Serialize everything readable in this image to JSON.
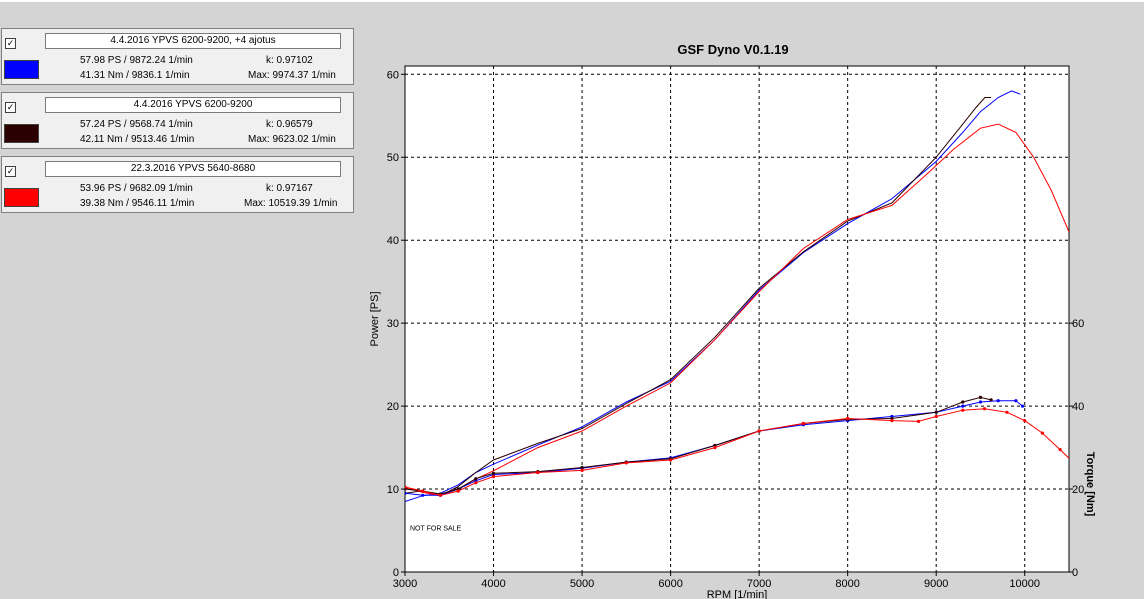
{
  "runs": [
    {
      "checked": "✓",
      "name": "4.4.2016 YPVS 6200-9200, +4 ajotus",
      "color": "#0000ff",
      "power": "57.98 PS / 9872.24 1/min",
      "k": "k: 0.97102",
      "torque": "41.31 Nm / 9836.1 1/min",
      "max": "Max: 9974.37 1/min"
    },
    {
      "checked": "✓",
      "name": "4.4.2016 YPVS 6200-9200",
      "color": "#2a0000",
      "power": "57.24 PS / 9568.74 1/min",
      "k": "k: 0.96579",
      "torque": "42.11 Nm / 9513.46 1/min",
      "max": "Max: 9623.02 1/min"
    },
    {
      "checked": "✓",
      "name": "22.3.2016 YPVS 5640-8680",
      "color": "#ff0000",
      "power": "53.96 PS / 9682.09 1/min",
      "k": "k: 0.97167",
      "torque": "39.38 Nm / 9546.11 1/min",
      "max": "Max: 10519.39 1/min"
    }
  ],
  "chart_data": {
    "type": "line",
    "title": "GSF Dyno V0.1.19",
    "xlabel": "RPM [1/min]",
    "ylabel": "Power [PS]",
    "y2label": "Torque [Nm]",
    "annotation": "NOT FOR SALE",
    "xlim": [
      3000,
      10500
    ],
    "ylim": [
      0,
      61
    ],
    "y2lim": [
      0,
      122
    ],
    "x_ticks": [
      3000,
      4000,
      5000,
      6000,
      7000,
      8000,
      9000,
      10000
    ],
    "y_ticks": [
      0,
      10,
      20,
      30,
      40,
      50,
      60
    ],
    "y2_ticks": [
      0,
      20,
      40,
      60
    ],
    "grid": true,
    "series": [
      {
        "name": "4.4.2016 YPVS 6200-9200, +4 ajotus",
        "quantity": "power",
        "color": "#0000ff",
        "x": [
          3000,
          3200,
          3400,
          3600,
          3800,
          4000,
          4500,
          5000,
          5500,
          6000,
          6500,
          7000,
          7500,
          8000,
          8500,
          9000,
          9300,
          9500,
          9700,
          9850,
          9950
        ],
        "y": [
          8.5,
          9.2,
          9.5,
          10.5,
          12,
          13,
          15.3,
          17.5,
          20.5,
          23,
          28,
          34,
          38.5,
          42,
          45,
          49.5,
          53,
          55.5,
          57.2,
          58,
          57.6
        ]
      },
      {
        "name": "4.4.2016 YPVS 6200-9200",
        "quantity": "power",
        "color": "#2a0000",
        "x": [
          3000,
          3200,
          3400,
          3600,
          3800,
          4000,
          4500,
          5000,
          5500,
          6000,
          6500,
          7000,
          7500,
          8000,
          8500,
          9000,
          9300,
          9450,
          9550,
          9620
        ],
        "y": [
          9.5,
          9.8,
          9.2,
          10.3,
          12,
          13.5,
          15.5,
          17.3,
          20.3,
          23.2,
          28.3,
          34.2,
          38.6,
          42.3,
          44.5,
          50,
          54,
          56,
          57.2,
          57.2
        ]
      },
      {
        "name": "22.3.2016 YPVS 5640-8680",
        "quantity": "power",
        "color": "#ff0000",
        "x": [
          3000,
          3200,
          3400,
          3600,
          3800,
          4000,
          4500,
          5000,
          5500,
          6000,
          6500,
          7000,
          7500,
          8000,
          8500,
          8900,
          9200,
          9500,
          9700,
          9900,
          10100,
          10300,
          10500
        ],
        "y": [
          10.2,
          9.6,
          9.2,
          10,
          11.2,
          12.2,
          15,
          17,
          20,
          22.8,
          28,
          33.8,
          39,
          42.5,
          44.2,
          48,
          51,
          53.5,
          54,
          53,
          50,
          46,
          41
        ]
      },
      {
        "name": "4.4.2016 YPVS 6200-9200, +4 ajotus",
        "quantity": "torque",
        "color": "#0000ff",
        "x": [
          3000,
          3200,
          3400,
          3600,
          3800,
          4000,
          4500,
          5000,
          5500,
          6000,
          6500,
          7000,
          7500,
          8000,
          8500,
          9000,
          9300,
          9500,
          9700,
          9900,
          9975
        ],
        "y": [
          19,
          18.5,
          18.5,
          20,
          22,
          23.5,
          24,
          25,
          26.5,
          27.5,
          30.5,
          34,
          35.5,
          36.5,
          37.5,
          38.5,
          40,
          41,
          41.3,
          41.3,
          40
        ]
      },
      {
        "name": "4.4.2016 YPVS 6200-9200",
        "quantity": "torque",
        "color": "#2a0000",
        "x": [
          3000,
          3200,
          3400,
          3600,
          3800,
          4000,
          4500,
          5000,
          5500,
          6000,
          6500,
          7000,
          7500,
          8000,
          8500,
          9000,
          9300,
          9500,
          9620
        ],
        "y": [
          20,
          19.5,
          18.8,
          20,
          22.5,
          23.8,
          24.2,
          25.2,
          26.5,
          27.3,
          30.5,
          34,
          35.8,
          36.8,
          37,
          38.5,
          41,
          42.1,
          41.5
        ]
      },
      {
        "name": "22.3.2016 YPVS 5640-8680",
        "quantity": "torque",
        "color": "#ff0000",
        "x": [
          3000,
          3200,
          3400,
          3600,
          3800,
          4000,
          4500,
          5000,
          5500,
          6000,
          6500,
          7000,
          7500,
          8000,
          8500,
          8800,
          9000,
          9300,
          9546,
          9800,
          10000,
          10200,
          10400,
          10520
        ],
        "y": [
          20.5,
          19.5,
          18.5,
          19.5,
          21.5,
          23,
          24,
          24.5,
          26.3,
          27,
          30,
          34,
          35.8,
          37,
          36.5,
          36.3,
          37.5,
          39,
          39.38,
          38.5,
          36.5,
          33.5,
          29.5,
          27
        ]
      }
    ]
  }
}
